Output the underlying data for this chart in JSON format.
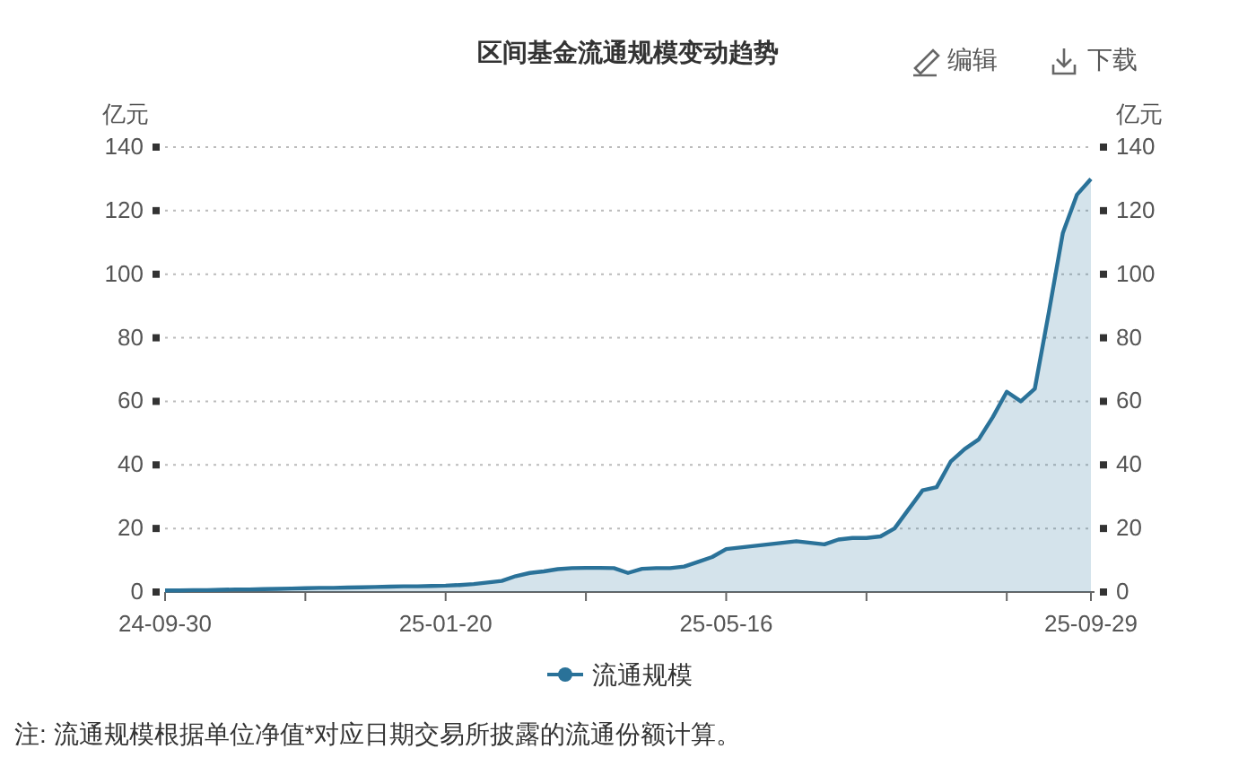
{
  "chart_data": {
    "type": "area",
    "title": "区间基金流通规模变动趋势",
    "ylabel": "亿元",
    "y2label": "亿元",
    "categories": [
      "24-09-30",
      null,
      null,
      null,
      null,
      null,
      null,
      null,
      null,
      null,
      null,
      null,
      null,
      null,
      null,
      null,
      null,
      null,
      null,
      null,
      "25-01-20",
      null,
      null,
      null,
      null,
      null,
      null,
      null,
      null,
      null,
      null,
      null,
      null,
      null,
      null,
      null,
      null,
      null,
      null,
      null,
      "25-05-16",
      null,
      null,
      null,
      null,
      null,
      null,
      null,
      null,
      null,
      null,
      null,
      null,
      null,
      null,
      null,
      null,
      null,
      null,
      null,
      null,
      null,
      null,
      null,
      null,
      null,
      "25-09-29"
    ],
    "series": [
      {
        "name": "流通规模",
        "color": "#2a7299",
        "values": [
          0.5,
          0.5,
          0.6,
          0.6,
          0.7,
          0.8,
          0.8,
          0.9,
          1,
          1.1,
          1.2,
          1.3,
          1.3,
          1.4,
          1.5,
          1.6,
          1.7,
          1.8,
          1.8,
          1.9,
          2,
          2.2,
          2.5,
          3,
          3.5,
          5,
          6,
          6.5,
          7.2,
          7.5,
          7.6,
          7.6,
          7.5,
          6,
          7.3,
          7.5,
          7.5,
          8,
          9.5,
          11,
          13.5,
          14,
          14.5,
          15,
          15.5,
          16,
          15.5,
          15,
          16.5,
          17,
          17,
          17.5,
          20,
          26,
          32,
          33,
          41,
          45,
          48,
          55,
          63,
          60,
          64,
          88,
          113,
          125,
          130
        ]
      }
    ],
    "ylim": [
      0,
      140
    ],
    "yticks": [
      0,
      20,
      40,
      60,
      80,
      100,
      120,
      140
    ],
    "y2lim": [
      0,
      140
    ],
    "y2ticks": [
      0,
      20,
      40,
      60,
      80,
      100,
      120,
      140
    ],
    "grid": "y",
    "legend": "bottom",
    "annotations": [
      "编辑",
      "下载",
      "注:  流通规模根据单位净值*对应日期交易所披露的流通份额计算。"
    ]
  }
}
